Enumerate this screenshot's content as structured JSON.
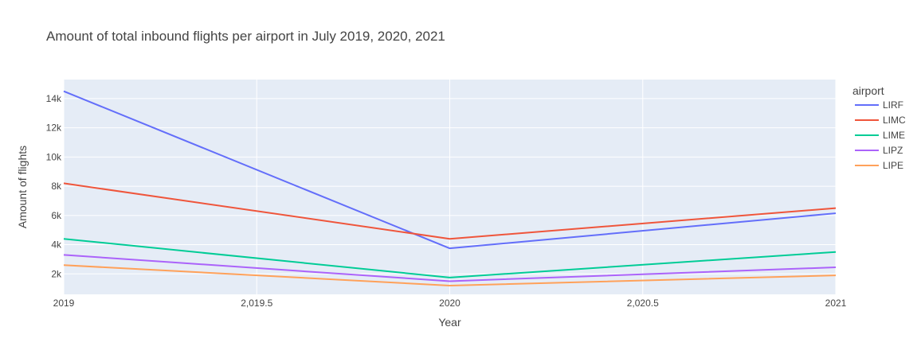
{
  "chart_data": {
    "type": "line",
    "title": "Amount of total inbound flights per airport in July 2019, 2020, 2021",
    "xlabel": "Year",
    "ylabel": "Amount of flights",
    "x": [
      2019,
      2020,
      2021
    ],
    "xlim": [
      2019,
      2021
    ],
    "ylim": [
      600,
      15300
    ],
    "x_ticks": [
      2019,
      2019.5,
      2020,
      2020.5,
      2021
    ],
    "x_tick_labels": [
      "2019",
      "2,019.5",
      "2020",
      "2,020.5",
      "2021"
    ],
    "y_ticks": [
      2000,
      4000,
      6000,
      8000,
      10000,
      12000,
      14000
    ],
    "y_tick_labels": [
      "2k",
      "4k",
      "6k",
      "8k",
      "10k",
      "12k",
      "14k"
    ],
    "grid": true,
    "legend_title": "airport",
    "legend_position": "right",
    "series": [
      {
        "name": "LIRF",
        "color": "#636efa",
        "values": [
          14500,
          3750,
          6150
        ]
      },
      {
        "name": "LIMC",
        "color": "#ef553b",
        "values": [
          8200,
          4400,
          6500
        ]
      },
      {
        "name": "LIME",
        "color": "#00cc96",
        "values": [
          4400,
          1750,
          3500
        ]
      },
      {
        "name": "LIPZ",
        "color": "#ab63fa",
        "values": [
          3300,
          1500,
          2450
        ]
      },
      {
        "name": "LIPE",
        "color": "#ffa15a",
        "values": [
          2600,
          1200,
          1900
        ]
      }
    ],
    "colors": {
      "plot_bg": "#e5ecf6",
      "grid": "#ffffff",
      "text": "#444444"
    }
  }
}
